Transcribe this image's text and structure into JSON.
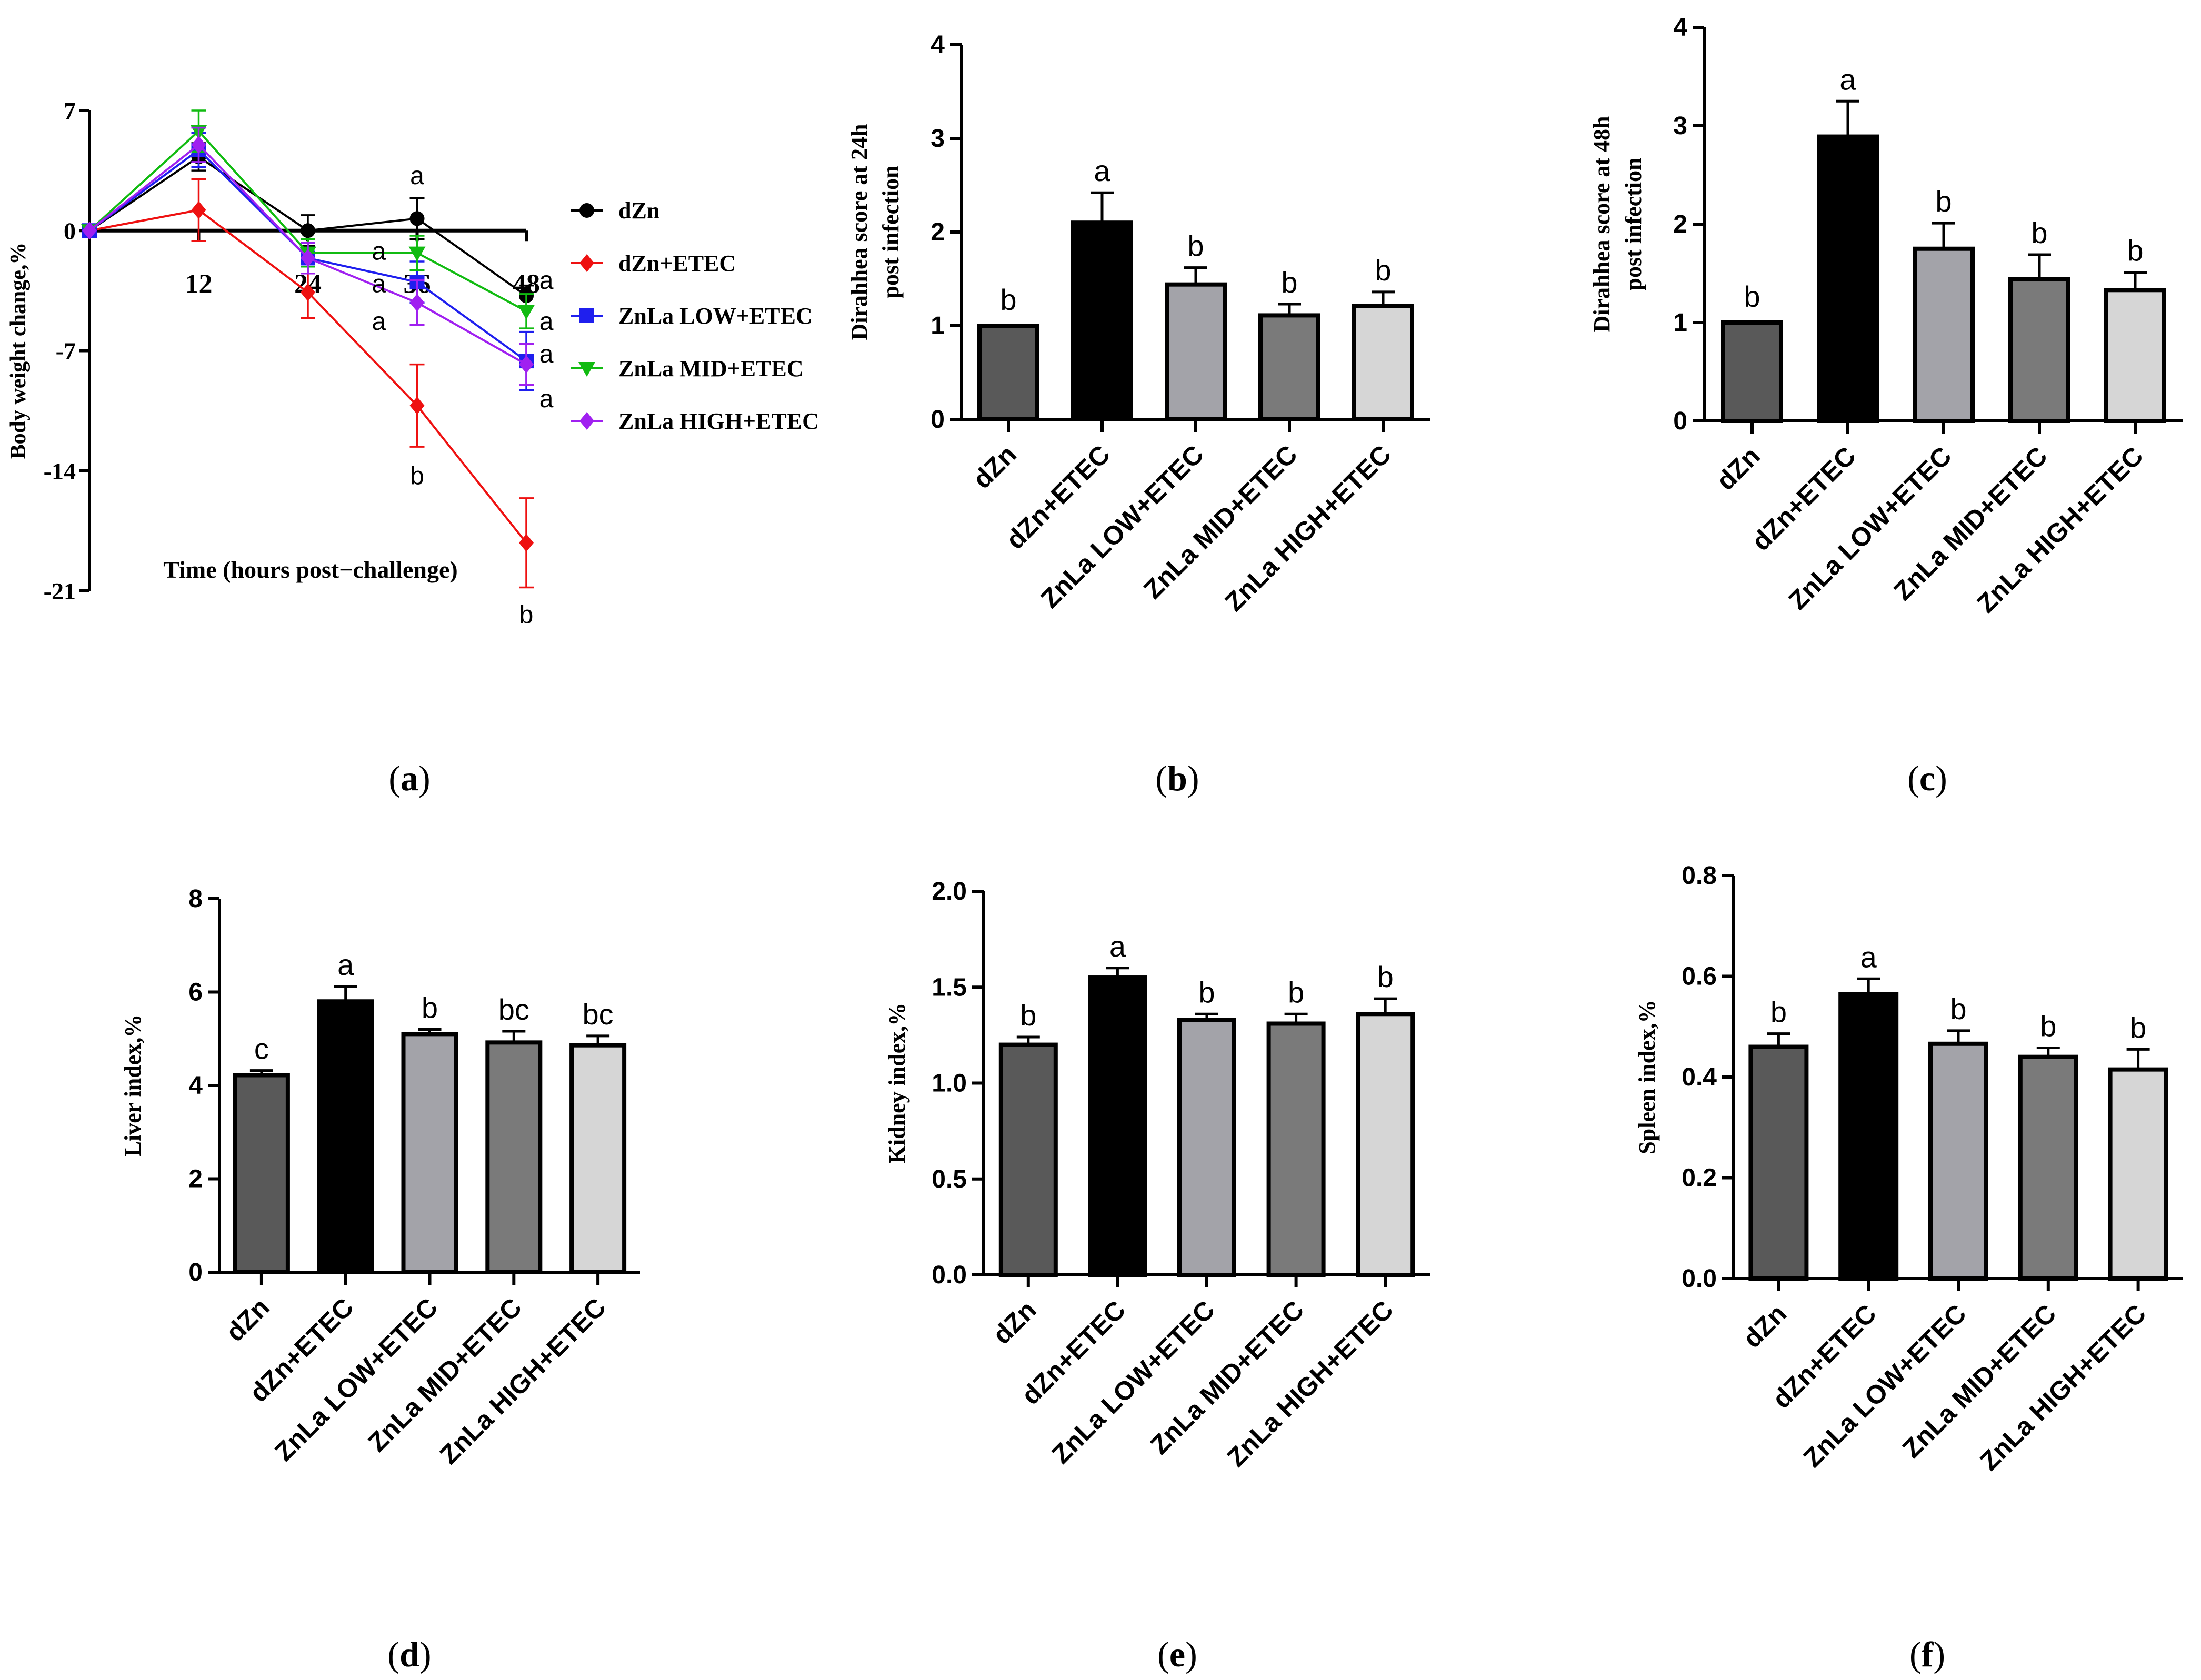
{
  "colors": {
    "dZn": "#000000",
    "dZn_ETEC": "#ee1111",
    "LOW": "#1f1fee",
    "MID": "#11bb11",
    "HIGH": "#a020f0",
    "bar_fills": [
      "#595959",
      "#000000",
      "#a3a3a9",
      "#7a7a7a",
      "#d6d6d6"
    ]
  },
  "chart_data": [
    {
      "id": "a",
      "type": "line",
      "panel_label": "(a)",
      "xlabel": "Time (hours post−challenge)",
      "ylabel": "Body weight change,%",
      "ylim": [
        -21,
        7
      ],
      "yticks": [
        "7",
        "0",
        "-7",
        "-14",
        "-21"
      ],
      "ytick_values": [
        7,
        0,
        -7,
        -14,
        -21
      ],
      "xlim": [
        0,
        48
      ],
      "xticks": [
        "12",
        "24",
        "36",
        "48"
      ],
      "xtick_values": [
        12,
        24,
        36,
        48
      ],
      "x": [
        0,
        12,
        24,
        36,
        48
      ],
      "series": [
        {
          "name": "dZn",
          "color_key": "dZn",
          "marker": "circle",
          "values": [
            0,
            4.3,
            0,
            0.7,
            -3.8
          ],
          "errors": [
            0,
            0.8,
            0.9,
            1.2,
            0.6
          ]
        },
        {
          "name": "dZn+ETEC",
          "color_key": "dZn_ETEC",
          "marker": "diamond",
          "values": [
            0,
            1.2,
            -3.6,
            -10.2,
            -18.2
          ],
          "errors": [
            0,
            1.8,
            1.5,
            2.4,
            2.6
          ]
        },
        {
          "name": "ZnLa LOW+ETEC",
          "color_key": "LOW",
          "marker": "square",
          "values": [
            0,
            4.7,
            -1.6,
            -3.0,
            -7.6
          ],
          "errors": [
            0,
            1.0,
            0.9,
            1.2,
            1.7
          ]
        },
        {
          "name": "ZnLa MID+ETEC",
          "color_key": "MID",
          "marker": "triangle-down",
          "values": [
            0,
            5.8,
            -1.3,
            -1.3,
            -4.7
          ],
          "errors": [
            0,
            1.2,
            0.8,
            1.0,
            1.0
          ]
        },
        {
          "name": "ZnLa HIGH+ETEC",
          "color_key": "HIGH",
          "marker": "diamond",
          "values": [
            0,
            5.0,
            -1.6,
            -4.2,
            -7.8
          ],
          "errors": [
            0,
            1.0,
            0.9,
            1.3,
            1.2
          ]
        }
      ],
      "annotations": [
        {
          "x": 36,
          "y": 3.2,
          "text": "a"
        },
        {
          "x": 36,
          "y": -14.3,
          "text": "b"
        },
        {
          "x": 48,
          "y": -22.4,
          "text": "b"
        },
        {
          "x": 31.8,
          "y": -1.2,
          "text": "a"
        },
        {
          "x": 31.8,
          "y": -3.1,
          "text": "a"
        },
        {
          "x": 31.8,
          "y": -5.3,
          "text": "a"
        },
        {
          "x": 50.2,
          "y": -2.9,
          "text": "a"
        },
        {
          "x": 50.2,
          "y": -5.3,
          "text": "a"
        },
        {
          "x": 50.2,
          "y": -7.2,
          "text": "a"
        },
        {
          "x": 50.2,
          "y": -9.8,
          "text": "a"
        }
      ]
    },
    {
      "id": "b",
      "type": "bar",
      "panel_label": "(b)",
      "ylabel_lines": [
        "Dirahhea score at 24h",
        "post infection"
      ],
      "ylim": [
        0,
        4
      ],
      "yticks": [
        "0",
        "1",
        "2",
        "3",
        "4"
      ],
      "ytick_values": [
        0,
        1,
        2,
        3,
        4
      ],
      "categories": [
        "dZn",
        "dZn+ETEC",
        "ZnLa LOW+ETEC",
        "ZnLa MID+ETEC",
        "ZnLa HIGH+ETEC"
      ],
      "values": [
        1.0,
        2.1,
        1.44,
        1.11,
        1.21
      ],
      "errors": [
        0,
        0.32,
        0.18,
        0.12,
        0.15
      ],
      "letters": [
        "b",
        "a",
        "b",
        "b",
        "b"
      ]
    },
    {
      "id": "c",
      "type": "bar",
      "panel_label": "(c)",
      "ylabel_lines": [
        "Dirahhea score at 48h",
        "post infection"
      ],
      "ylim": [
        0,
        4
      ],
      "yticks": [
        "0",
        "1",
        "2",
        "3",
        "4"
      ],
      "ytick_values": [
        0,
        1,
        2,
        3,
        4
      ],
      "categories": [
        "dZn",
        "dZn+ETEC",
        "ZnLa LOW+ETEC",
        "ZnLa MID+ETEC",
        "ZnLa HIGH+ETEC"
      ],
      "values": [
        1.0,
        2.89,
        1.75,
        1.44,
        1.33
      ],
      "errors": [
        0,
        0.36,
        0.26,
        0.25,
        0.18
      ],
      "letters": [
        "b",
        "a",
        "b",
        "b",
        "b"
      ]
    },
    {
      "id": "d",
      "type": "bar",
      "panel_label": "(d)",
      "ylabel_lines": [
        "Liver index,%"
      ],
      "ylim": [
        0,
        8
      ],
      "yticks": [
        "0",
        "2",
        "4",
        "6",
        "8"
      ],
      "ytick_values": [
        0,
        2,
        4,
        6,
        8
      ],
      "categories": [
        "dZn",
        "dZn+ETEC",
        "ZnLa LOW+ETEC",
        "ZnLa MID+ETEC",
        "ZnLa HIGH+ETEC"
      ],
      "values": [
        4.22,
        5.8,
        5.1,
        4.92,
        4.86
      ],
      "errors": [
        0.1,
        0.32,
        0.1,
        0.24,
        0.2
      ],
      "letters": [
        "c",
        "a",
        "b",
        "bc",
        "bc"
      ]
    },
    {
      "id": "e",
      "type": "bar",
      "panel_label": "(e)",
      "ylabel_lines": [
        "Kidney index,%"
      ],
      "ylim": [
        0,
        2
      ],
      "yticks": [
        "0.0",
        "0.5",
        "1.0",
        "1.5",
        "2.0"
      ],
      "ytick_values": [
        0,
        0.5,
        1,
        1.5,
        2
      ],
      "categories": [
        "dZn",
        "dZn+ETEC",
        "ZnLa LOW+ETEC",
        "ZnLa MID+ETEC",
        "ZnLa HIGH+ETEC"
      ],
      "values": [
        1.2,
        1.55,
        1.33,
        1.31,
        1.36
      ],
      "errors": [
        0.04,
        0.05,
        0.03,
        0.05,
        0.08
      ],
      "letters": [
        "b",
        "a",
        "b",
        "b",
        "b"
      ]
    },
    {
      "id": "f",
      "type": "bar",
      "panel_label": "(f)",
      "ylabel_lines": [
        "Spleen index,%"
      ],
      "ylim": [
        0,
        0.8
      ],
      "yticks": [
        "0.0",
        "0.2",
        "0.4",
        "0.6",
        "0.8"
      ],
      "ytick_values": [
        0,
        0.2,
        0.4,
        0.6,
        0.8
      ],
      "categories": [
        "dZn",
        "dZn+ETEC",
        "ZnLa LOW+ETEC",
        "ZnLa MID+ETEC",
        "ZnLa HIGH+ETEC"
      ],
      "values": [
        0.46,
        0.565,
        0.466,
        0.44,
        0.415
      ],
      "errors": [
        0.026,
        0.03,
        0.026,
        0.018,
        0.04
      ],
      "letters": [
        "b",
        "a",
        "b",
        "b",
        "b"
      ]
    }
  ]
}
